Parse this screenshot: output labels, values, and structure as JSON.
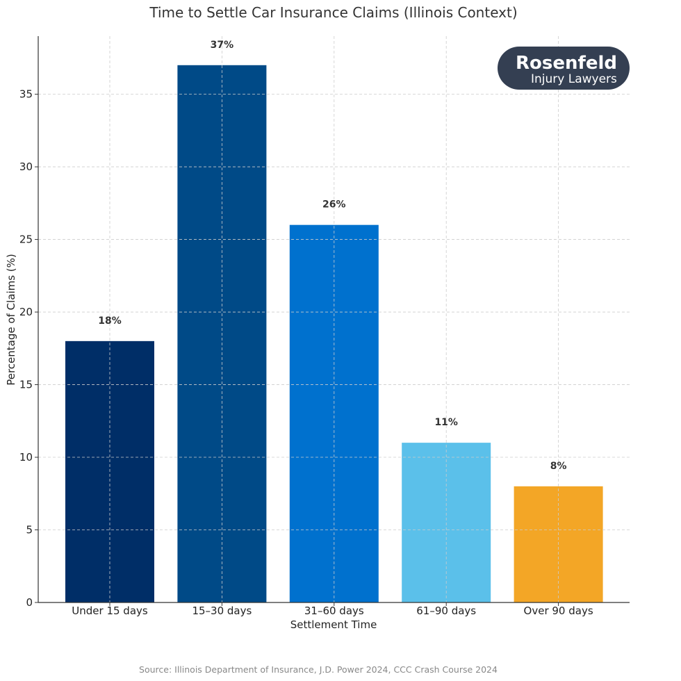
{
  "chart_data": {
    "type": "bar",
    "title": "Time to Settle Car Insurance Claims (Illinois Context)",
    "xlabel": "Settlement Time",
    "ylabel": "Percentage of Claims (%)",
    "categories": [
      "Under 15 days",
      "15–30 days",
      "31–60 days",
      "61–90 days",
      "Over 90 days"
    ],
    "values": [
      18,
      37,
      26,
      11,
      8
    ],
    "value_labels": [
      "18%",
      "37%",
      "26%",
      "11%",
      "8%"
    ],
    "colors": [
      "#002e67",
      "#004a87",
      "#0071ce",
      "#5bc0ea",
      "#f3a626"
    ],
    "ylim": [
      0,
      39
    ],
    "yticks": [
      0,
      5,
      10,
      15,
      20,
      25,
      30,
      35
    ],
    "grid": true,
    "legend": "none"
  },
  "source": "Source: Illinois Department of Insurance, J.D. Power 2024, CCC Crash Course 2024",
  "logo": {
    "brand": "Rosenfeld",
    "subtitle": "Injury Lawyers",
    "background": "#343f52"
  }
}
